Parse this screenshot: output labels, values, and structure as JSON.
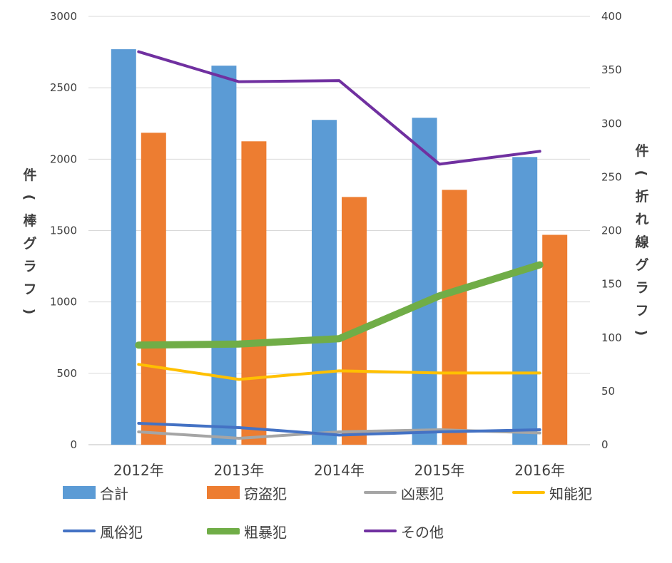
{
  "chart_data": {
    "type": "bar+line",
    "categories": [
      "2012年",
      "2013年",
      "2014年",
      "2015年",
      "2016年"
    ],
    "left_axis": {
      "title": "件(棒グラフ)",
      "range": [
        0,
        3000
      ],
      "ticks": [
        "0",
        "500",
        "1000",
        "1500",
        "2000",
        "2500",
        "3000"
      ]
    },
    "right_axis": {
      "title": "件(折れ線グラフ)",
      "range": [
        0,
        400
      ],
      "ticks": [
        "0",
        "50",
        "100",
        "150",
        "200",
        "250",
        "300",
        "350",
        "400"
      ]
    },
    "bar_series": [
      {
        "name": "合計",
        "color": "#5B9BD5",
        "values": [
          2770,
          2655,
          2275,
          2290,
          2015
        ]
      },
      {
        "name": "窃盗犯",
        "color": "#ED7D31",
        "values": [
          2185,
          2125,
          1735,
          1785,
          1470
        ]
      }
    ],
    "line_series": [
      {
        "name": "凶悪犯",
        "color": "#A5A5A5",
        "width": 4,
        "values": [
          12,
          6,
          12,
          14,
          11
        ]
      },
      {
        "name": "知能犯",
        "color": "#FFC000",
        "width": 4,
        "values": [
          75,
          61,
          69,
          67,
          67
        ]
      },
      {
        "name": "風俗犯",
        "color": "#4472C4",
        "width": 4,
        "values": [
          20,
          16,
          9,
          12,
          14
        ]
      },
      {
        "name": "粗暴犯",
        "color": "#70AD47",
        "width": 10,
        "values": [
          93,
          94,
          99,
          139,
          168
        ]
      },
      {
        "name": "その他",
        "color": "#7030A0",
        "width": 4,
        "values": [
          367,
          339,
          340,
          262,
          274
        ]
      }
    ],
    "gridlines": true,
    "legend_position": "bottom"
  }
}
